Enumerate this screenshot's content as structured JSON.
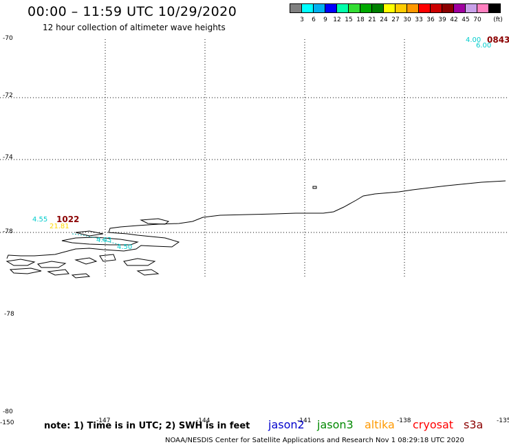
{
  "header": {
    "title": "00:00 – 11:59 UTC 10/29/2020",
    "subtitle": "12 hour collection of altimeter wave heights"
  },
  "colorbar": {
    "unit": "(ft)",
    "entries": [
      {
        "label": "",
        "color": "#808080"
      },
      {
        "label": "3",
        "color": "#00ffff"
      },
      {
        "label": "6",
        "color": "#00b0f0"
      },
      {
        "label": "9",
        "color": "#0000ff"
      },
      {
        "label": "12",
        "color": "#00ffaa"
      },
      {
        "label": "15",
        "color": "#33dd33"
      },
      {
        "label": "18",
        "color": "#00aa00"
      },
      {
        "label": "21",
        "color": "#008000"
      },
      {
        "label": "24",
        "color": "#ffff00"
      },
      {
        "label": "27",
        "color": "#ffcc00"
      },
      {
        "label": "30",
        "color": "#ff9900"
      },
      {
        "label": "33",
        "color": "#ff0000"
      },
      {
        "label": "36",
        "color": "#cc0000"
      },
      {
        "label": "39",
        "color": "#8b0000"
      },
      {
        "label": "42",
        "color": "#a000a0"
      },
      {
        "label": "45",
        "color": "#c8a0e8"
      },
      {
        "label": "70",
        "color": "#ff80c0"
      },
      {
        "label": "",
        "color": "#000000"
      }
    ]
  },
  "chart_data": {
    "type": "map",
    "title": "00:00 – 11:59 UTC 10/29/2020",
    "subtitle": "12 hour collection of altimeter wave heights",
    "axes": {
      "y_ticks_top": [
        "-70",
        "-72",
        "-74",
        "-76",
        "-78"
      ],
      "y_ticks_bottom": [
        "-78",
        "-80"
      ],
      "x_ticks": [
        "-150",
        "-147",
        "-144",
        "-141",
        "-138",
        "-135"
      ],
      "x_range": [
        -150,
        -135
      ]
    },
    "grid": "dotted",
    "tracks": [
      {
        "time": "0843",
        "swh": [
          "4.00",
          "6.00"
        ],
        "time_color": "#8b0000",
        "swh_colors": [
          "#00cccc",
          "#00cccc"
        ]
      },
      {
        "time": "1022",
        "swh": [
          "4.55",
          "21.81",
          "4.63",
          "4.50"
        ],
        "time_color": "#8b0000",
        "swh_colors": [
          "#00cccc",
          "#ffd700",
          "#00cccc",
          "#00cccc"
        ]
      }
    ]
  },
  "footer": {
    "note": "note: 1) Time is in UTC; 2) SWH is in feet",
    "satellites": [
      {
        "name": "jason2",
        "color": "#0000cc"
      },
      {
        "name": "jason3",
        "color": "#008800"
      },
      {
        "name": "altika",
        "color": "#ff9900"
      },
      {
        "name": "cryosat",
        "color": "#ff0000"
      },
      {
        "name": "s3a",
        "color": "#8b0000"
      }
    ],
    "credit": "NOAA/NESDIS Center for Satellite Applications and Research    Nov  1 08:29:18 UTC 2020"
  }
}
